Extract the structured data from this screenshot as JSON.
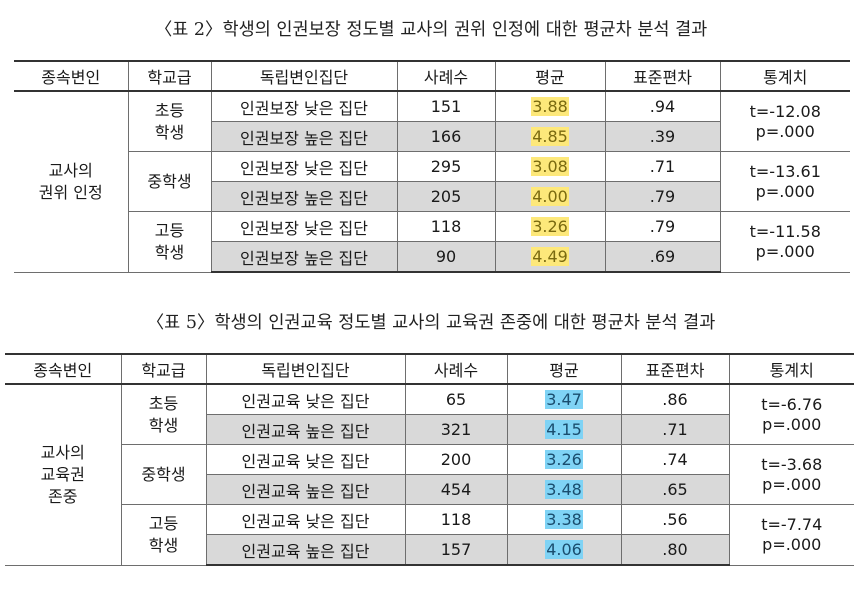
{
  "table2": {
    "caption": "〈표 2〉학생의 인권보장 정도별 교사의 권위 인정에 대한 평균차 분석 결과",
    "headers": [
      "종속변인",
      "학교급",
      "독립변인집단",
      "사례수",
      "평균",
      "표준편차",
      "통계치"
    ],
    "dependent_var": "교사의\n권위 인정",
    "groups": [
      {
        "level": "초등\n학생",
        "rows": [
          {
            "group": "인권보장 낮은 집단",
            "n": "151",
            "mean": "3.88",
            "sd": ".94"
          },
          {
            "group": "인권보장 높은 집단",
            "n": "166",
            "mean": "4.85",
            "sd": ".39"
          }
        ],
        "stat": "t=-12.08\np=.000"
      },
      {
        "level": "중학생",
        "rows": [
          {
            "group": "인권보장 낮은 집단",
            "n": "295",
            "mean": "3.08",
            "sd": ".71"
          },
          {
            "group": "인권보장 높은 집단",
            "n": "205",
            "mean": "4.00",
            "sd": ".79"
          }
        ],
        "stat": "t=-13.61\np=.000"
      },
      {
        "level": "고등\n학생",
        "rows": [
          {
            "group": "인권보장 낮은 집단",
            "n": "118",
            "mean": "3.26",
            "sd": ".79"
          },
          {
            "group": "인권보장 높은 집단",
            "n": "90",
            "mean": "4.49",
            "sd": ".69"
          }
        ],
        "stat": "t=-11.58\np=.000"
      }
    ],
    "highlight_color": "#fde87a"
  },
  "table5": {
    "caption": "〈표 5〉학생의 인권교육 정도별 교사의 교육권 존중에 대한 평균차 분석 결과",
    "headers": [
      "종속변인",
      "학교급",
      "독립변인집단",
      "사례수",
      "평균",
      "표준편차",
      "통계치"
    ],
    "dependent_var": "교사의\n교육권\n존중",
    "groups": [
      {
        "level": "초등\n학생",
        "rows": [
          {
            "group": "인권교육 낮은 집단",
            "n": "65",
            "mean": "3.47",
            "sd": ".86"
          },
          {
            "group": "인권교육 높은 집단",
            "n": "321",
            "mean": "4.15",
            "sd": ".71"
          }
        ],
        "stat": "t=-6.76\np=.000"
      },
      {
        "level": "중학생",
        "rows": [
          {
            "group": "인권교육 낮은 집단",
            "n": "200",
            "mean": "3.26",
            "sd": ".74"
          },
          {
            "group": "인권교육 높은 집단",
            "n": "454",
            "mean": "3.48",
            "sd": ".65"
          }
        ],
        "stat": "t=-3.68\np=.000"
      },
      {
        "level": "고등\n학생",
        "rows": [
          {
            "group": "인권교육 낮은 집단",
            "n": "118",
            "mean": "3.38",
            "sd": ".56"
          },
          {
            "group": "인권교육 높은 집단",
            "n": "157",
            "mean": "4.06",
            "sd": ".80"
          }
        ],
        "stat": "t=-7.74\np=.000"
      }
    ],
    "highlight_color": "#7fd3f5"
  }
}
